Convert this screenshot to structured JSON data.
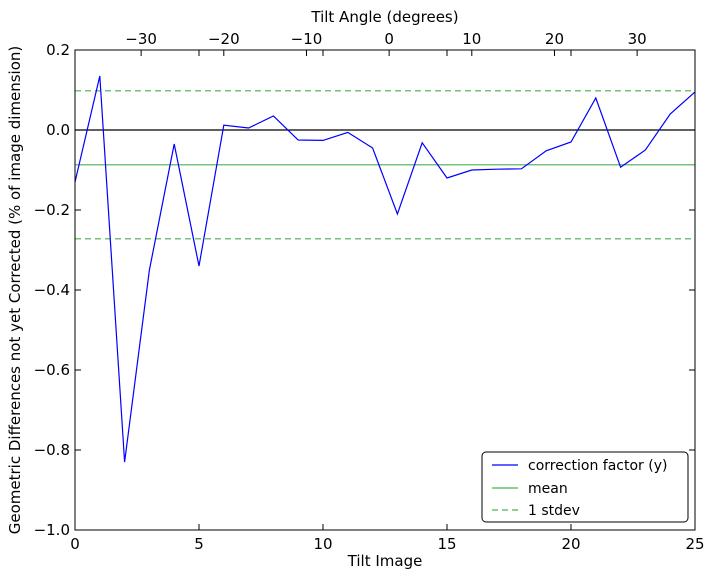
{
  "chart_data": {
    "type": "line",
    "xlabel": "Tilt Image",
    "ylabel": "Geometric Differences not yet Corrected (% of image dimension)",
    "top_xlabel": "Tilt Angle (degrees)",
    "xlim": [
      0,
      25
    ],
    "ylim": [
      -1.0,
      0.2
    ],
    "top_xlim": [
      -38,
      37
    ],
    "x_ticks": [
      0,
      5,
      10,
      15,
      20,
      25
    ],
    "x_tick_labels": [
      "0",
      "5",
      "10",
      "15",
      "20",
      "25"
    ],
    "y_ticks": [
      0.2,
      0.0,
      -0.2,
      -0.4,
      -0.6,
      -0.8,
      -1.0
    ],
    "y_tick_labels": [
      "0.2",
      "0.0",
      "−0.2",
      "−0.4",
      "−0.6",
      "−0.8",
      "−1.0"
    ],
    "top_ticks": [
      -30,
      -20,
      -10,
      0,
      10,
      20,
      30
    ],
    "top_tick_labels": [
      "−30",
      "−20",
      "−10",
      "0",
      "10",
      "20",
      "30"
    ],
    "grid": false,
    "legend_position": "bottom-right",
    "series": [
      {
        "name": "correction factor (y)",
        "color": "#0000ff",
        "style": "solid",
        "x": [
          0,
          1,
          2,
          3,
          4,
          5,
          6,
          7,
          8,
          9,
          10,
          11,
          12,
          13,
          14,
          15,
          16,
          17,
          18,
          19,
          20,
          21,
          22,
          23,
          24,
          25
        ],
        "values": [
          -0.13,
          0.135,
          -0.83,
          -0.35,
          -0.035,
          -0.34,
          0.012,
          0.005,
          0.035,
          -0.025,
          -0.026,
          -0.006,
          -0.045,
          -0.21,
          -0.032,
          -0.12,
          -0.1,
          -0.098,
          -0.097,
          -0.052,
          -0.03,
          0.08,
          -0.093,
          -0.05,
          0.04,
          0.095
        ]
      },
      {
        "name": "mean",
        "color": "#4caf50",
        "style": "solid",
        "value": -0.087
      },
      {
        "name": "1 stdev",
        "color": "#4caf50",
        "style": "dashed",
        "values": [
          0.098,
          -0.272
        ]
      }
    ],
    "zero_line": {
      "value": 0.0,
      "color": "#000000"
    }
  }
}
